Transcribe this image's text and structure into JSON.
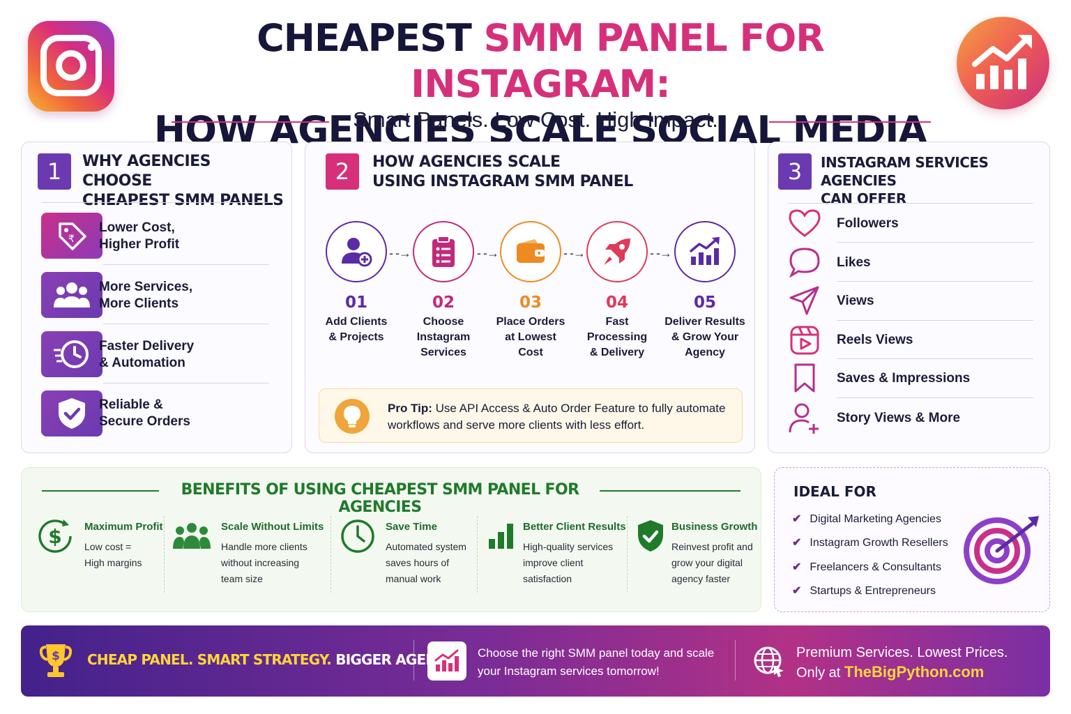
{
  "header": {
    "title_line1_dark": "CHEAPEST ",
    "title_line1_pink": "SMM PANEL FOR INSTAGRAM:",
    "title_line2": "HOW AGENCIES SCALE SOCIAL MEDIA SERVICES?",
    "subtitle": "Smart Panels. Low Cost. High Impact."
  },
  "section1": {
    "number": "1",
    "title_line1": "WHY AGENCIES CHOOSE",
    "title_line2": "CHEAPEST SMM PANELS",
    "items": [
      {
        "icon": "price-tag-icon",
        "line1": "Lower Cost,",
        "line2": "Higher Profit"
      },
      {
        "icon": "group-icon",
        "line1": "More Services,",
        "line2": "More Clients"
      },
      {
        "icon": "fast-clock-icon",
        "line1": "Faster Delivery",
        "line2": "& Automation"
      },
      {
        "icon": "shield-check-icon",
        "line1": "Reliable &",
        "line2": "Secure Orders"
      }
    ]
  },
  "section2": {
    "number": "2",
    "title_line1": "HOW AGENCIES SCALE",
    "title_line2": "USING INSTAGRAM SMM PANEL",
    "steps": [
      {
        "num": "01",
        "icon": "add-user-icon",
        "label": "Add Clients & Projects",
        "color": "#5b2aa6"
      },
      {
        "num": "02",
        "icon": "clipboard-icon",
        "label": "Choose Instagram Services",
        "color": "#c2297b"
      },
      {
        "num": "03",
        "icon": "wallet-icon",
        "label": "Place Orders at Lowest Cost",
        "color": "#ee8a22"
      },
      {
        "num": "04",
        "icon": "rocket-icon",
        "label": "Fast Processing & Delivery",
        "color": "#e03a59"
      },
      {
        "num": "05",
        "icon": "bar-chart-icon",
        "label": "Deliver Results & Grow Your Agency",
        "color": "#5b2aa6"
      }
    ],
    "protip_label": "Pro Tip:",
    "protip_text": " Use API Access & Auto Order Feature to fully automate workflows and serve more clients with less effort."
  },
  "section3": {
    "number": "3",
    "title_line1": "INSTAGRAM SERVICES AGENCIES",
    "title_line2": "CAN OFFER",
    "services": [
      {
        "icon": "heart-icon",
        "label": "Followers"
      },
      {
        "icon": "speech-bubble-icon",
        "label": "Likes"
      },
      {
        "icon": "send-icon",
        "label": "Views"
      },
      {
        "icon": "reels-icon",
        "label": "Reels Views"
      },
      {
        "icon": "bookmark-icon",
        "label": "Saves & Impressions"
      },
      {
        "icon": "add-user-outline-icon",
        "label": "Story Views & More"
      }
    ]
  },
  "benefits": {
    "title": "BENEFITS OF USING CHEAPEST SMM PANEL FOR AGENCIES",
    "items": [
      {
        "icon": "dollar-cycle-icon",
        "title": "Maximum Profit",
        "line1": "Low cost =",
        "line2": "High margins",
        "line3": ""
      },
      {
        "icon": "team-icon",
        "title": "Scale Without Limits",
        "line1": "Handle more clients",
        "line2": "without increasing",
        "line3": "team size"
      },
      {
        "icon": "clock-icon",
        "title": "Save Time",
        "line1": "Automated system",
        "line2": "saves hours of",
        "line3": "manual work"
      },
      {
        "icon": "bar-growth-icon",
        "title": "Better Client Results",
        "line1": "High-quality services",
        "line2": "improve client",
        "line3": "satisfaction"
      },
      {
        "icon": "shield-check-icon",
        "title": "Business Growth",
        "line1": "Reinvest profit and",
        "line2": "grow your digital",
        "line3": "agency faster"
      }
    ]
  },
  "ideal": {
    "title": "IDEAL FOR",
    "check": "✔",
    "items": [
      "Digital Marketing Agencies",
      "Instagram Growth Resellers",
      "Freelancers & Consultants",
      "Startups & Entrepreneurs"
    ]
  },
  "footer": {
    "slogan_a": "CHEAP PANEL.",
    "slogan_b": " SMART STRATEGY.",
    "slogan_c": " BIGGER AGENCY.",
    "mid_line1": "Choose the right SMM panel today and scale",
    "mid_line2": "your Instagram services tomorrow!",
    "right_line1": "Premium Services. Lowest Prices.",
    "right_prefix": "Only at ",
    "right_site": "TheBigPython.com"
  },
  "colors": {
    "primary_purple": "#6b3ab0",
    "accent_pink": "#d6307a",
    "benefit_green": "#1f7a2a",
    "footer_gold": "#ffd43a"
  }
}
